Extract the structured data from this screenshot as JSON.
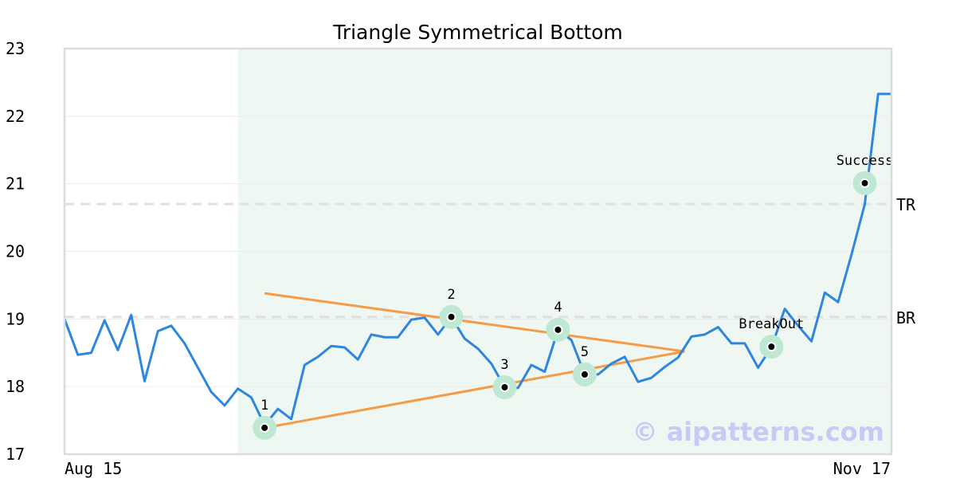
{
  "chart_data": {
    "type": "line",
    "title": "Triangle Symmetrical Bottom",
    "x_start_label": "Aug 15",
    "x_end_label": "Nov 17",
    "ylim": [
      17,
      23
    ],
    "y_ticks": [
      "17",
      "18",
      "19",
      "20",
      "21",
      "22",
      "23"
    ],
    "grid": true,
    "watermark": "© aipatterns.com",
    "series": [
      {
        "color": "#2e86de",
        "values": [
          19.0,
          18.47,
          18.5,
          18.98,
          18.54,
          19.06,
          18.08,
          18.82,
          18.9,
          18.64,
          18.28,
          17.92,
          17.72,
          17.97,
          17.84,
          17.43,
          17.67,
          17.52,
          18.32,
          18.44,
          18.6,
          18.58,
          18.4,
          18.77,
          18.73,
          18.73,
          18.99,
          19.02,
          18.77,
          19.03,
          18.71,
          18.56,
          18.34,
          17.99,
          17.98,
          18.32,
          18.22,
          18.84,
          18.69,
          18.18,
          18.18,
          18.34,
          18.44,
          18.07,
          18.13,
          18.29,
          18.43,
          18.74,
          18.77,
          18.88,
          18.64,
          18.64,
          18.28,
          18.58,
          19.15,
          18.9,
          18.67,
          19.39,
          19.25,
          19.95,
          20.7,
          22.33,
          22.33
        ]
      }
    ],
    "levels": [
      {
        "label": "TR",
        "value": 20.7
      },
      {
        "label": "BR",
        "value": 19.03
      }
    ],
    "pattern_region": {
      "start_index": 13,
      "end_index": 62
    },
    "trendlines": [
      {
        "color": "#f59a45",
        "from": [
          15,
          19.38
        ],
        "to": [
          46.5,
          18.52
        ]
      },
      {
        "color": "#f59a45",
        "from": [
          15,
          17.39
        ],
        "to": [
          46.5,
          18.52
        ]
      }
    ],
    "points": [
      {
        "label": "1",
        "index": 15,
        "value": 17.39
      },
      {
        "label": "2",
        "index": 29,
        "value": 19.03
      },
      {
        "label": "3",
        "index": 33,
        "value": 17.99
      },
      {
        "label": "4",
        "index": 37,
        "value": 18.84
      },
      {
        "label": "5",
        "index": 39,
        "value": 18.18
      },
      {
        "label": "BreakOut",
        "index": 53,
        "value": 18.59
      },
      {
        "label": "Success",
        "index": 60,
        "value": 21.01
      }
    ],
    "colors": {
      "line": "#2e86de",
      "trend": "#f59a45",
      "region": "#eff7f3",
      "marker_halo": "#bfe8d3",
      "level": "#e0e0e0"
    }
  }
}
